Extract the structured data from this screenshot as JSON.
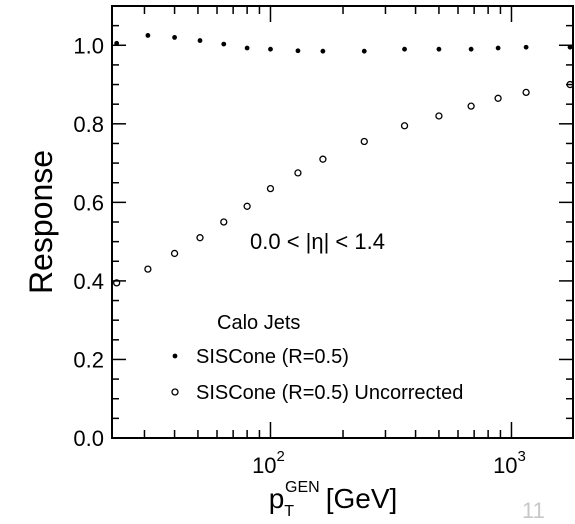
{
  "chart_data": {
    "type": "scatter",
    "title": "",
    "ylabel": "Response",
    "xlabel": {
      "base": "p",
      "sub": "T",
      "sup": "GEN",
      "unit": "[GeV]"
    },
    "xscale": "log",
    "xlim": [
      22,
      1800
    ],
    "ylim": [
      0.0,
      1.1
    ],
    "yticks": [
      {
        "value": 0.0,
        "label": "0.0"
      },
      {
        "value": 0.2,
        "label": "0.2"
      },
      {
        "value": 0.4,
        "label": "0.4"
      },
      {
        "value": 0.6,
        "label": "0.6"
      },
      {
        "value": 0.8,
        "label": "0.8"
      },
      {
        "value": 1.0,
        "label": "1.0"
      }
    ],
    "xticks": [
      {
        "value": 100,
        "base": "10",
        "exp": "2"
      },
      {
        "value": 1000,
        "base": "10",
        "exp": "3"
      }
    ],
    "grid": false,
    "legend": {
      "title": "Calo Jets",
      "placement": "bottom-right"
    },
    "annotation": "0.0 < |η| < 1.4",
    "series": [
      {
        "name": "SISCone (R=0.5)",
        "marker": "filled-dot",
        "points": [
          {
            "x": 23,
            "y": 1.005
          },
          {
            "x": 31,
            "y": 1.025
          },
          {
            "x": 40,
            "y": 1.02
          },
          {
            "x": 51,
            "y": 1.012
          },
          {
            "x": 64,
            "y": 1.003
          },
          {
            "x": 80,
            "y": 0.993
          },
          {
            "x": 100,
            "y": 0.99
          },
          {
            "x": 130,
            "y": 0.986
          },
          {
            "x": 165,
            "y": 0.985
          },
          {
            "x": 245,
            "y": 0.985
          },
          {
            "x": 360,
            "y": 0.99
          },
          {
            "x": 500,
            "y": 0.99
          },
          {
            "x": 680,
            "y": 0.99
          },
          {
            "x": 880,
            "y": 0.993
          },
          {
            "x": 1150,
            "y": 0.995
          },
          {
            "x": 1750,
            "y": 0.995
          }
        ]
      },
      {
        "name": "SISCone (R=0.5) Uncorrected",
        "marker": "open-circle",
        "points": [
          {
            "x": 23,
            "y": 0.395
          },
          {
            "x": 31,
            "y": 0.43
          },
          {
            "x": 40,
            "y": 0.47
          },
          {
            "x": 51,
            "y": 0.51
          },
          {
            "x": 64,
            "y": 0.55
          },
          {
            "x": 80,
            "y": 0.59
          },
          {
            "x": 100,
            "y": 0.635
          },
          {
            "x": 130,
            "y": 0.675
          },
          {
            "x": 165,
            "y": 0.71
          },
          {
            "x": 245,
            "y": 0.755
          },
          {
            "x": 360,
            "y": 0.795
          },
          {
            "x": 500,
            "y": 0.82
          },
          {
            "x": 680,
            "y": 0.845
          },
          {
            "x": 880,
            "y": 0.865
          },
          {
            "x": 1150,
            "y": 0.88
          },
          {
            "x": 1750,
            "y": 0.9
          }
        ]
      }
    ]
  },
  "page": {
    "number": "11"
  }
}
